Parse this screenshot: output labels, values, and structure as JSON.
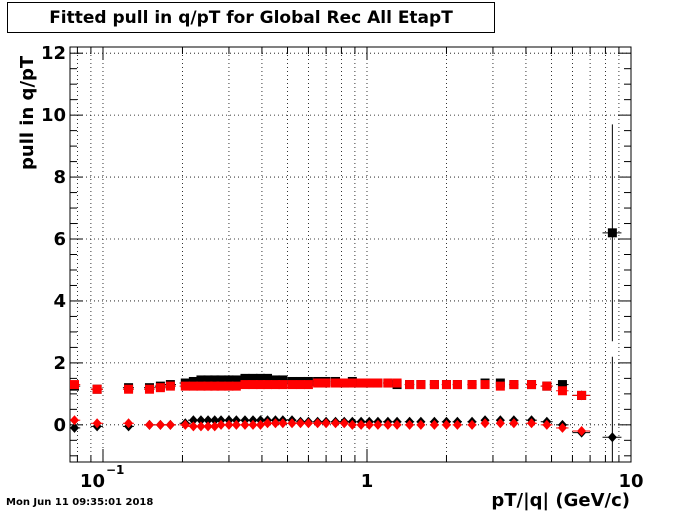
{
  "chart_data": {
    "type": "scatter",
    "title": "Fitted pull in q/pT for Global Rec All EtapT",
    "xlabel": "pT/|q| (GeV/c)",
    "ylabel": "pull in q/pT",
    "xscale": "log",
    "xlim": [
      0.075,
      10
    ],
    "ylim": [
      -1.2,
      12.2
    ],
    "grid": true,
    "x_tick_labels": [
      {
        "value": 0.1,
        "base": "10",
        "exp": "−1"
      },
      {
        "value": 1,
        "base": "1",
        "exp": ""
      },
      {
        "value": 10,
        "base": "10",
        "exp": ""
      }
    ],
    "y_ticks": [
      0,
      2,
      4,
      6,
      8,
      10,
      12
    ],
    "y_tick_labels": [
      "0",
      "2",
      "4",
      "6",
      "8",
      "10",
      "12"
    ],
    "series": [
      {
        "color": "#000000",
        "marker": "square",
        "x": [
          0.078,
          0.095,
          0.125,
          0.15,
          0.165,
          0.18,
          0.205,
          0.22,
          0.235,
          0.25,
          0.265,
          0.28,
          0.3,
          0.32,
          0.345,
          0.37,
          0.395,
          0.42,
          0.45,
          0.48,
          0.52,
          0.56,
          0.6,
          0.65,
          0.7,
          0.76,
          0.82,
          0.88,
          0.95,
          1.02,
          1.1,
          1.2,
          1.3,
          1.45,
          1.6,
          1.8,
          2.0,
          2.2,
          2.5,
          2.8,
          3.2,
          3.6,
          4.2,
          4.8,
          5.5,
          6.5,
          8.5
        ],
        "y": [
          1.25,
          1.15,
          1.2,
          1.2,
          1.25,
          1.3,
          1.35,
          1.4,
          1.45,
          1.45,
          1.45,
          1.45,
          1.45,
          1.45,
          1.5,
          1.5,
          1.5,
          1.5,
          1.45,
          1.45,
          1.4,
          1.4,
          1.4,
          1.4,
          1.4,
          1.4,
          1.35,
          1.4,
          1.35,
          1.35,
          1.35,
          1.35,
          1.3,
          1.3,
          1.3,
          1.3,
          1.3,
          1.3,
          1.3,
          1.35,
          1.35,
          1.3,
          1.3,
          1.25,
          1.3,
          0.95,
          6.2
        ],
        "yerr": [
          0.05,
          0.05,
          0.05,
          0.05,
          0.05,
          0.05,
          0.05,
          0.05,
          0.05,
          0.05,
          0.05,
          0.05,
          0.05,
          0.05,
          0.05,
          0.05,
          0.05,
          0.05,
          0.05,
          0.05,
          0.05,
          0.05,
          0.05,
          0.05,
          0.05,
          0.05,
          0.05,
          0.05,
          0.05,
          0.05,
          0.05,
          0.05,
          0.05,
          0.05,
          0.05,
          0.05,
          0.05,
          0.05,
          0.05,
          0.05,
          0.05,
          0.05,
          0.05,
          0.05,
          0.08,
          0.15,
          3.5
        ],
        "xerr": [
          0.004,
          0.005,
          0.006,
          0.007,
          0.008,
          0.009,
          0.01,
          0.01,
          0.01,
          0.01,
          0.01,
          0.01,
          0.012,
          0.012,
          0.013,
          0.014,
          0.015,
          0.016,
          0.017,
          0.018,
          0.02,
          0.02,
          0.022,
          0.025,
          0.027,
          0.03,
          0.03,
          0.032,
          0.035,
          0.04,
          0.04,
          0.05,
          0.05,
          0.06,
          0.06,
          0.07,
          0.08,
          0.09,
          0.1,
          0.1,
          0.12,
          0.15,
          0.2,
          0.25,
          0.3,
          0.5,
          0.7
        ]
      },
      {
        "color": "#ff0000",
        "marker": "square",
        "x": [
          0.078,
          0.095,
          0.125,
          0.15,
          0.165,
          0.18,
          0.205,
          0.22,
          0.235,
          0.25,
          0.265,
          0.28,
          0.3,
          0.32,
          0.345,
          0.37,
          0.395,
          0.42,
          0.45,
          0.48,
          0.52,
          0.56,
          0.6,
          0.65,
          0.7,
          0.76,
          0.82,
          0.88,
          0.95,
          1.02,
          1.1,
          1.2,
          1.3,
          1.45,
          1.6,
          1.8,
          2.0,
          2.2,
          2.5,
          2.8,
          3.2,
          3.6,
          4.2,
          4.8,
          5.5,
          6.5
        ],
        "y": [
          1.3,
          1.15,
          1.15,
          1.15,
          1.2,
          1.25,
          1.25,
          1.25,
          1.25,
          1.25,
          1.25,
          1.25,
          1.25,
          1.25,
          1.3,
          1.3,
          1.3,
          1.3,
          1.3,
          1.3,
          1.3,
          1.3,
          1.3,
          1.35,
          1.35,
          1.35,
          1.35,
          1.35,
          1.35,
          1.35,
          1.35,
          1.35,
          1.35,
          1.3,
          1.3,
          1.3,
          1.3,
          1.3,
          1.3,
          1.3,
          1.25,
          1.3,
          1.3,
          1.25,
          1.1,
          0.95
        ],
        "yerr": [
          0.05,
          0.05,
          0.05,
          0.05,
          0.05,
          0.05,
          0.05,
          0.05,
          0.05,
          0.05,
          0.05,
          0.05,
          0.05,
          0.05,
          0.05,
          0.05,
          0.05,
          0.05,
          0.05,
          0.05,
          0.05,
          0.05,
          0.05,
          0.05,
          0.05,
          0.05,
          0.05,
          0.05,
          0.05,
          0.05,
          0.05,
          0.05,
          0.05,
          0.05,
          0.05,
          0.05,
          0.05,
          0.05,
          0.05,
          0.05,
          0.05,
          0.05,
          0.05,
          0.05,
          0.08,
          0.15
        ],
        "xerr": [
          0.004,
          0.005,
          0.006,
          0.007,
          0.008,
          0.009,
          0.01,
          0.01,
          0.01,
          0.01,
          0.01,
          0.01,
          0.012,
          0.012,
          0.013,
          0.014,
          0.015,
          0.016,
          0.017,
          0.018,
          0.02,
          0.02,
          0.022,
          0.025,
          0.027,
          0.03,
          0.03,
          0.032,
          0.035,
          0.04,
          0.04,
          0.05,
          0.05,
          0.06,
          0.06,
          0.07,
          0.08,
          0.09,
          0.1,
          0.1,
          0.12,
          0.15,
          0.2,
          0.25,
          0.3,
          0.5
        ]
      },
      {
        "color": "#000000",
        "marker": "diamond",
        "x": [
          0.078,
          0.095,
          0.125,
          0.15,
          0.165,
          0.18,
          0.205,
          0.22,
          0.235,
          0.25,
          0.265,
          0.28,
          0.3,
          0.32,
          0.345,
          0.37,
          0.395,
          0.42,
          0.45,
          0.48,
          0.52,
          0.56,
          0.6,
          0.65,
          0.7,
          0.76,
          0.82,
          0.88,
          0.95,
          1.02,
          1.1,
          1.2,
          1.3,
          1.45,
          1.6,
          1.8,
          2.0,
          2.2,
          2.5,
          2.8,
          3.2,
          3.6,
          4.2,
          4.8,
          5.5,
          6.5,
          8.5
        ],
        "y": [
          -0.1,
          -0.05,
          -0.05,
          0.0,
          0.0,
          0.0,
          0.05,
          0.15,
          0.15,
          0.15,
          0.15,
          0.15,
          0.15,
          0.15,
          0.15,
          0.15,
          0.15,
          0.15,
          0.15,
          0.15,
          0.15,
          0.1,
          0.1,
          0.1,
          0.1,
          0.1,
          0.1,
          0.1,
          0.1,
          0.1,
          0.1,
          0.1,
          0.1,
          0.1,
          0.1,
          0.1,
          0.1,
          0.1,
          0.1,
          0.15,
          0.15,
          0.15,
          0.15,
          0.1,
          0.0,
          -0.25,
          -0.4
        ],
        "yerr": [
          0.05,
          0.05,
          0.05,
          0.05,
          0.05,
          0.05,
          0.05,
          0.05,
          0.05,
          0.05,
          0.05,
          0.05,
          0.05,
          0.05,
          0.05,
          0.05,
          0.05,
          0.05,
          0.05,
          0.05,
          0.05,
          0.05,
          0.05,
          0.05,
          0.05,
          0.05,
          0.05,
          0.05,
          0.05,
          0.05,
          0.05,
          0.05,
          0.05,
          0.05,
          0.05,
          0.05,
          0.05,
          0.05,
          0.05,
          0.05,
          0.05,
          0.05,
          0.05,
          0.05,
          0.08,
          0.12,
          2.6
        ],
        "xerr": [
          0.004,
          0.005,
          0.006,
          0.007,
          0.008,
          0.009,
          0.01,
          0.01,
          0.01,
          0.01,
          0.01,
          0.01,
          0.012,
          0.012,
          0.013,
          0.014,
          0.015,
          0.016,
          0.017,
          0.018,
          0.02,
          0.02,
          0.022,
          0.025,
          0.027,
          0.03,
          0.03,
          0.032,
          0.035,
          0.04,
          0.04,
          0.05,
          0.05,
          0.06,
          0.06,
          0.07,
          0.08,
          0.09,
          0.1,
          0.1,
          0.12,
          0.15,
          0.2,
          0.25,
          0.3,
          0.5,
          0.7
        ]
      },
      {
        "color": "#ff0000",
        "marker": "diamond",
        "x": [
          0.078,
          0.095,
          0.125,
          0.15,
          0.165,
          0.18,
          0.205,
          0.22,
          0.235,
          0.25,
          0.265,
          0.28,
          0.3,
          0.32,
          0.345,
          0.37,
          0.395,
          0.42,
          0.45,
          0.48,
          0.52,
          0.56,
          0.6,
          0.65,
          0.7,
          0.76,
          0.82,
          0.88,
          0.95,
          1.02,
          1.1,
          1.2,
          1.3,
          1.45,
          1.6,
          1.8,
          2.0,
          2.2,
          2.5,
          2.8,
          3.2,
          3.6,
          4.2,
          4.8,
          5.5,
          6.5
        ],
        "y": [
          0.15,
          0.05,
          0.05,
          0.0,
          0.0,
          0.0,
          0.0,
          -0.05,
          -0.05,
          -0.05,
          -0.05,
          0.0,
          0.0,
          0.0,
          0.0,
          0.0,
          0.0,
          0.05,
          0.05,
          0.05,
          0.05,
          0.05,
          0.05,
          0.05,
          0.05,
          0.05,
          0.05,
          0.0,
          0.0,
          0.0,
          0.0,
          0.0,
          0.0,
          0.0,
          0.0,
          0.0,
          0.0,
          0.0,
          0.0,
          0.05,
          0.05,
          0.05,
          0.05,
          0.0,
          -0.1,
          -0.2
        ],
        "yerr": [
          0.05,
          0.05,
          0.05,
          0.05,
          0.05,
          0.05,
          0.05,
          0.05,
          0.05,
          0.05,
          0.05,
          0.05,
          0.05,
          0.05,
          0.05,
          0.05,
          0.05,
          0.05,
          0.05,
          0.05,
          0.05,
          0.05,
          0.05,
          0.05,
          0.05,
          0.05,
          0.05,
          0.05,
          0.05,
          0.05,
          0.05,
          0.05,
          0.05,
          0.05,
          0.05,
          0.05,
          0.05,
          0.05,
          0.05,
          0.05,
          0.05,
          0.05,
          0.05,
          0.05,
          0.08,
          0.12
        ],
        "xerr": [
          0.004,
          0.005,
          0.006,
          0.007,
          0.008,
          0.009,
          0.01,
          0.01,
          0.01,
          0.01,
          0.01,
          0.01,
          0.012,
          0.012,
          0.013,
          0.014,
          0.015,
          0.016,
          0.017,
          0.018,
          0.02,
          0.02,
          0.022,
          0.025,
          0.027,
          0.03,
          0.03,
          0.032,
          0.035,
          0.04,
          0.04,
          0.05,
          0.05,
          0.06,
          0.06,
          0.07,
          0.08,
          0.09,
          0.1,
          0.1,
          0.12,
          0.15,
          0.2,
          0.25,
          0.3,
          0.5
        ]
      }
    ]
  },
  "footer": {
    "timestamp": "Mon Jun 11 09:35:01 2018"
  }
}
